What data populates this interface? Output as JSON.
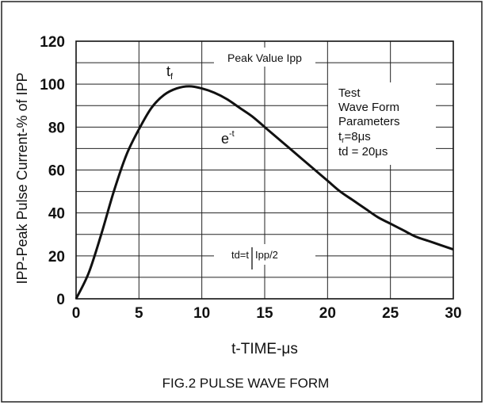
{
  "chart_data": {
    "type": "line",
    "title": "",
    "caption": "FIG.2 PULSE WAVE FORM",
    "xlabel": "t-TIME-μs",
    "ylabel": "IPP-Peak Pulse Current-% of IPP",
    "xlim": [
      0,
      30
    ],
    "ylim": [
      0,
      120
    ],
    "x_ticks": [
      0,
      5,
      10,
      15,
      20,
      25,
      30
    ],
    "y_ticks": [
      0,
      20,
      40,
      60,
      80,
      100,
      120
    ],
    "grid": true,
    "series": [
      {
        "x": [
          0,
          1,
          2,
          3,
          4,
          5,
          6,
          7,
          8,
          9,
          10,
          11,
          12,
          13,
          14,
          15,
          16,
          17,
          18,
          19,
          20,
          21,
          22,
          23,
          24,
          25,
          26,
          27,
          28,
          29,
          30
        ],
        "values": [
          0,
          12,
          30,
          50,
          67,
          79,
          89,
          95,
          98,
          99,
          98,
          96,
          93,
          89,
          85,
          80,
          75,
          70,
          65,
          60,
          55,
          50,
          46,
          42,
          38,
          35,
          32,
          29,
          27,
          25,
          23
        ]
      }
    ],
    "annotations": {
      "peak_value": "Peak Value Ipp",
      "tf_main": "t",
      "tf_sub": "f",
      "et_main": "e",
      "et_sup": "-t",
      "params_lines": [
        "Test",
        "Wave Form",
        "Parameters"
      ],
      "tr_main": "t",
      "tr_sub": "r",
      "tr_value": "=8μs",
      "td_value": "td = 20μs",
      "td_half_left": "td=t",
      "td_half_right": "Ipp/2"
    }
  }
}
